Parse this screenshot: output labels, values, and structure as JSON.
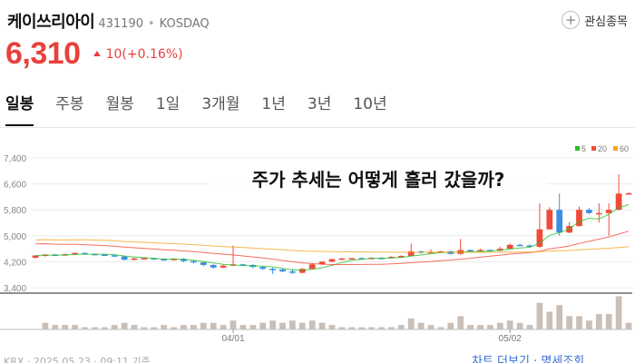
{
  "stock": {
    "name": "케이쓰리아이",
    "code": "431190",
    "market": "KOSDAQ",
    "price": "6,310",
    "change": "10(+0.16%)",
    "fav_label": "관심종목"
  },
  "tabs": [
    {
      "label": "일봉",
      "active": true
    },
    {
      "label": "주봉"
    },
    {
      "label": "월봉"
    },
    {
      "label": "1일"
    },
    {
      "label": "3개월"
    },
    {
      "label": "1년"
    },
    {
      "label": "3년"
    },
    {
      "label": "10년"
    }
  ],
  "overlay_text": "주가 추세는 어떻게 흘러 갔을까?",
  "footer": {
    "source": "KRX · 2025.05.23 · 09:11 기준",
    "links": "차트 더보기 · 명세조회"
  },
  "colors": {
    "up": "#f04b3a",
    "down": "#3a8fe0",
    "ma5": "#28c028",
    "ma20": "#f04b3a",
    "ma60": "#f4a422"
  },
  "chart_data": {
    "type": "candlestick",
    "y_ticks": [
      "7,400",
      "6,600",
      "5,800",
      "5,000",
      "4,200",
      "3,400"
    ],
    "ylim": [
      3400,
      7400
    ],
    "x_labels": [
      "04/01",
      "05/02"
    ],
    "legend": [
      {
        "name": "5",
        "color": "#28c028"
      },
      {
        "name": "20",
        "color": "#f04b3a"
      },
      {
        "name": "60",
        "color": "#f4a422"
      }
    ],
    "candles": [
      [
        4320,
        4390,
        4300,
        4400,
        0
      ],
      [
        4390,
        4420,
        4360,
        4440,
        3
      ],
      [
        4420,
        4400,
        4380,
        4440,
        2
      ],
      [
        4400,
        4430,
        4390,
        4450,
        2
      ],
      [
        4430,
        4470,
        4420,
        4490,
        2
      ],
      [
        4470,
        4440,
        4420,
        4480,
        1
      ],
      [
        4440,
        4420,
        4400,
        4450,
        1
      ],
      [
        4420,
        4400,
        4380,
        4430,
        1
      ],
      [
        4400,
        4360,
        4340,
        4420,
        2
      ],
      [
        4360,
        4260,
        4240,
        4380,
        3
      ],
      [
        4260,
        4300,
        4240,
        4330,
        2
      ],
      [
        4300,
        4310,
        4280,
        4330,
        1
      ],
      [
        4310,
        4280,
        4260,
        4330,
        1
      ],
      [
        4280,
        4250,
        4230,
        4300,
        2
      ],
      [
        4250,
        4290,
        4240,
        4300,
        1
      ],
      [
        4290,
        4220,
        4180,
        4310,
        2
      ],
      [
        4220,
        4180,
        4140,
        4240,
        2
      ],
      [
        4180,
        4100,
        4060,
        4200,
        3
      ],
      [
        4100,
        4020,
        3980,
        4120,
        3
      ],
      [
        4020,
        4080,
        4000,
        4110,
        2
      ],
      [
        4080,
        4120,
        4060,
        4700,
        4
      ],
      [
        4120,
        4100,
        4060,
        4140,
        2
      ],
      [
        4100,
        4040,
        4000,
        4120,
        2
      ],
      [
        4040,
        3980,
        3940,
        4060,
        3
      ],
      [
        3980,
        3960,
        3820,
        4020,
        4
      ],
      [
        3960,
        3900,
        3880,
        4000,
        3
      ],
      [
        3900,
        3860,
        3820,
        3980,
        4
      ],
      [
        3860,
        3980,
        3840,
        4000,
        3
      ],
      [
        3980,
        4120,
        3960,
        4160,
        4
      ],
      [
        4120,
        4200,
        4100,
        4220,
        3
      ],
      [
        4200,
        4280,
        4180,
        4300,
        2
      ],
      [
        4280,
        4300,
        4260,
        4320,
        1
      ],
      [
        4300,
        4310,
        4280,
        4320,
        1
      ],
      [
        4310,
        4300,
        4280,
        4340,
        1
      ],
      [
        4300,
        4320,
        4290,
        4340,
        1
      ],
      [
        4320,
        4310,
        4290,
        4340,
        1
      ],
      [
        4310,
        4350,
        4300,
        4370,
        1
      ],
      [
        4350,
        4380,
        4330,
        4400,
        2
      ],
      [
        4380,
        4520,
        4360,
        4760,
        5
      ],
      [
        4520,
        4480,
        4440,
        4540,
        3
      ],
      [
        4480,
        4500,
        4470,
        4580,
        2
      ],
      [
        4500,
        4520,
        4480,
        4540,
        1
      ],
      [
        4520,
        4440,
        4420,
        4540,
        3
      ],
      [
        4440,
        4560,
        4420,
        4900,
        6
      ],
      [
        4560,
        4520,
        4500,
        4580,
        2
      ],
      [
        4520,
        4560,
        4500,
        4600,
        2
      ],
      [
        4560,
        4540,
        4520,
        4580,
        2
      ],
      [
        4540,
        4600,
        4520,
        4660,
        3
      ],
      [
        4600,
        4720,
        4580,
        4760,
        4
      ],
      [
        4720,
        4700,
        4680,
        4760,
        3
      ],
      [
        4700,
        4660,
        4640,
        4740,
        2
      ],
      [
        4660,
        5200,
        4620,
        6000,
        12
      ],
      [
        5200,
        5800,
        5180,
        5880,
        8
      ],
      [
        5800,
        5100,
        5000,
        6300,
        11
      ],
      [
        5100,
        5300,
        5080,
        5420,
        6
      ],
      [
        5300,
        5800,
        5280,
        5900,
        6
      ],
      [
        5800,
        5700,
        5660,
        5860,
        4
      ],
      [
        5700,
        5700,
        5400,
        6000,
        7
      ],
      [
        5700,
        5800,
        5000,
        6000,
        7
      ],
      [
        5800,
        6300,
        5780,
        6900,
        15
      ],
      [
        6300,
        6310,
        6280,
        6340,
        3
      ]
    ]
  }
}
